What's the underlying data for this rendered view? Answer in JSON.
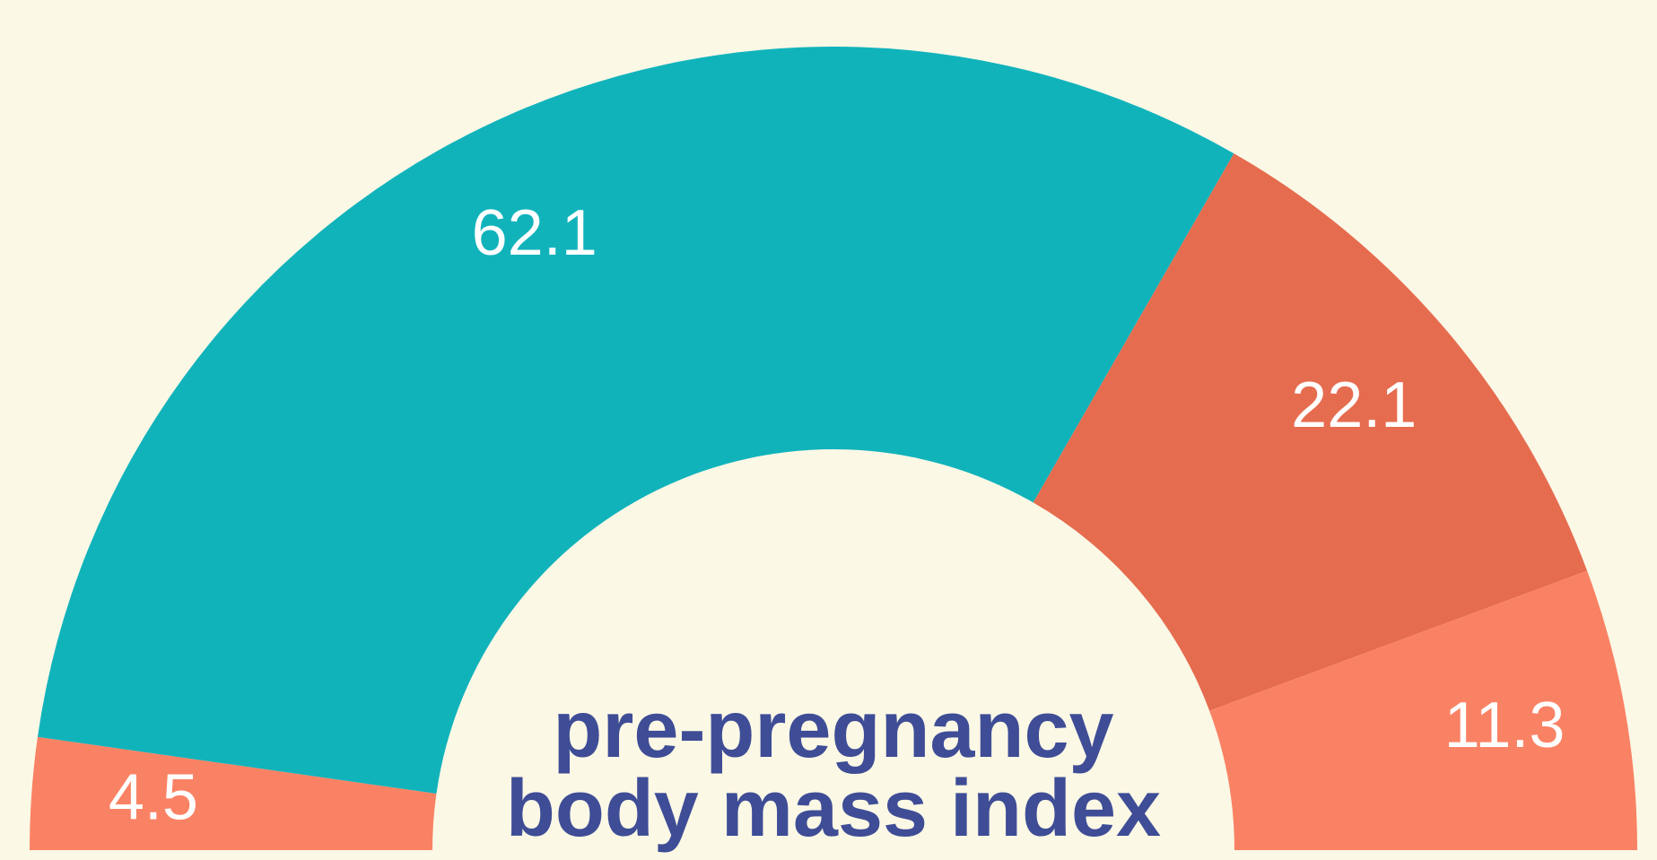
{
  "chart_data": {
    "type": "pie",
    "title": "pre-pregnancy body mass index",
    "values": [
      4.5,
      62.1,
      22.1,
      11.3
    ],
    "colors": [
      "#fa8264",
      "#11b3bb",
      "#e66c4f",
      "#fa8264"
    ],
    "half": true,
    "donut": true
  }
}
